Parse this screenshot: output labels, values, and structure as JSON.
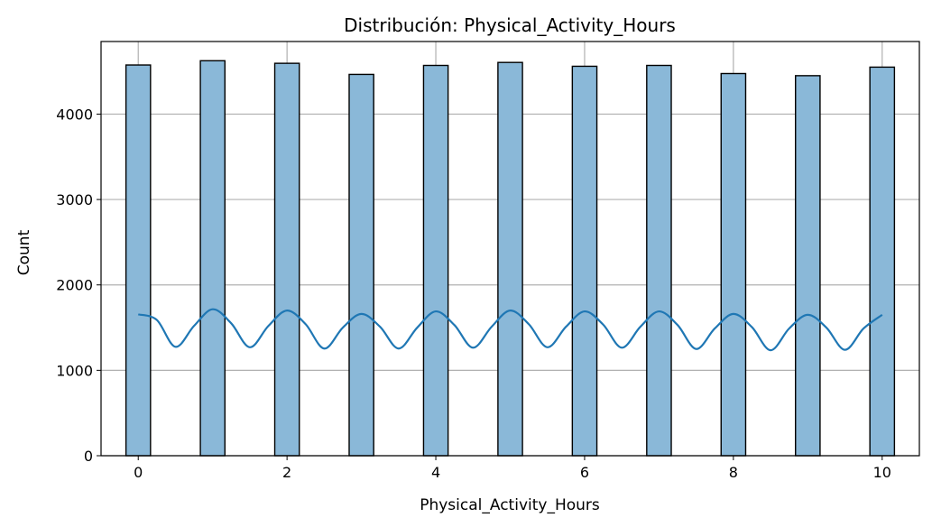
{
  "chart_data": {
    "type": "bar",
    "title": "Distribución: Physical_Activity_Hours",
    "xlabel": "Physical_Activity_Hours",
    "ylabel": "Count",
    "x": [
      0,
      1,
      2,
      3,
      4,
      5,
      6,
      7,
      8,
      9,
      10
    ],
    "values": [
      4575,
      4625,
      4595,
      4465,
      4570,
      4605,
      4560,
      4570,
      4475,
      4450,
      4550
    ],
    "xticks": [
      0,
      2,
      4,
      6,
      8,
      10
    ],
    "xtick_labels": [
      "0",
      "2",
      "4",
      "6",
      "8",
      "10"
    ],
    "yticks": [
      0,
      1000,
      2000,
      3000,
      4000
    ],
    "ytick_labels": [
      "0",
      "1000",
      "2000",
      "3000",
      "4000"
    ],
    "xlim": [
      -0.5,
      10.5
    ],
    "ylim": [
      0,
      4850
    ],
    "grid": true,
    "bar_color": "#8ab8d8",
    "bar_edge_color": "#000000",
    "kde": {
      "x": [
        0,
        0.25,
        0.5,
        0.75,
        1,
        1.25,
        1.5,
        1.75,
        2,
        2.25,
        2.5,
        2.75,
        3,
        3.25,
        3.5,
        3.75,
        4,
        4.25,
        4.5,
        4.75,
        5,
        5.25,
        5.5,
        5.75,
        6,
        6.25,
        6.5,
        6.75,
        7,
        7.25,
        7.5,
        7.75,
        8,
        8.25,
        8.5,
        8.75,
        9,
        9.25,
        9.5,
        9.75,
        10
      ],
      "y": [
        1655,
        1590,
        1275,
        1520,
        1715,
        1550,
        1270,
        1520,
        1700,
        1540,
        1255,
        1500,
        1660,
        1510,
        1255,
        1500,
        1690,
        1530,
        1265,
        1510,
        1700,
        1540,
        1270,
        1510,
        1690,
        1535,
        1265,
        1510,
        1690,
        1530,
        1250,
        1490,
        1660,
        1505,
        1235,
        1490,
        1650,
        1500,
        1240,
        1490,
        1650
      ],
      "color": "#1f77b4"
    }
  }
}
